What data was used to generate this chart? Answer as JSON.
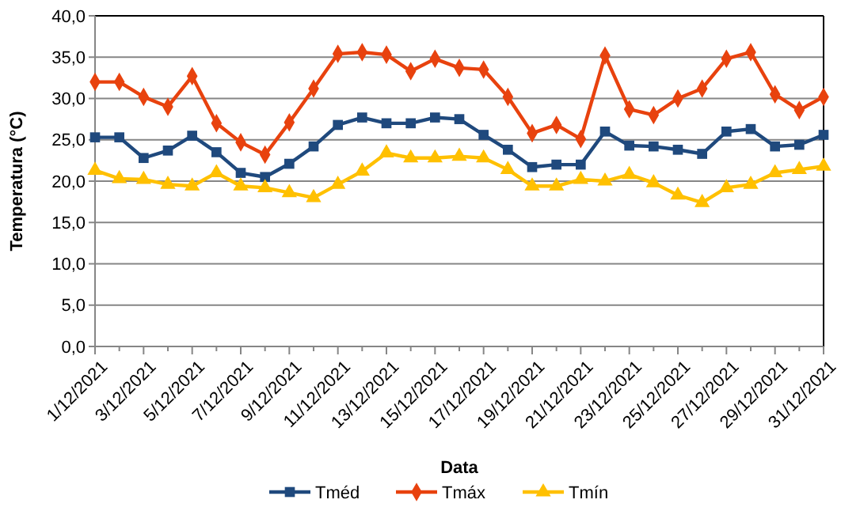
{
  "chart_data": {
    "type": "line",
    "xlabel": "Data",
    "ylabel": "Temperatura (°C)",
    "x": [
      "2021-12-01",
      "2021-12-02",
      "2021-12-03",
      "2021-12-04",
      "2021-12-05",
      "2021-12-06",
      "2021-12-07",
      "2021-12-08",
      "2021-12-09",
      "2021-12-10",
      "2021-12-11",
      "2021-12-12",
      "2021-12-13",
      "2021-12-14",
      "2021-12-15",
      "2021-12-16",
      "2021-12-17",
      "2021-12-18",
      "2021-12-19",
      "2021-12-20",
      "2021-12-21",
      "2021-12-22",
      "2021-12-23",
      "2021-12-24",
      "2021-12-25",
      "2021-12-26",
      "2021-12-27",
      "2021-12-28",
      "2021-12-29",
      "2021-12-30",
      "2021-12-31"
    ],
    "xlim": [
      "2021-12-01",
      "2021-12-31"
    ],
    "xticks": [
      {
        "value": "2021-12-01",
        "label": "1/12/2021"
      },
      {
        "value": "2021-12-02",
        "label": null
      },
      {
        "value": "2021-12-03",
        "label": "3/12/2021"
      },
      {
        "value": "2021-12-04",
        "label": null
      },
      {
        "value": "2021-12-05",
        "label": "5/12/2021"
      },
      {
        "value": "2021-12-06",
        "label": null
      },
      {
        "value": "2021-12-07",
        "label": "7/12/2021"
      },
      {
        "value": "2021-12-08",
        "label": null
      },
      {
        "value": "2021-12-09",
        "label": "9/12/2021"
      },
      {
        "value": "2021-12-10",
        "label": null
      },
      {
        "value": "2021-12-11",
        "label": "11/12/2021"
      },
      {
        "value": "2021-12-12",
        "label": null
      },
      {
        "value": "2021-12-13",
        "label": "13/12/2021"
      },
      {
        "value": "2021-12-14",
        "label": null
      },
      {
        "value": "2021-12-15",
        "label": "15/12/2021"
      },
      {
        "value": "2021-12-16",
        "label": null
      },
      {
        "value": "2021-12-17",
        "label": "17/12/2021"
      },
      {
        "value": "2021-12-18",
        "label": null
      },
      {
        "value": "2021-12-19",
        "label": "19/12/2021"
      },
      {
        "value": "2021-12-20",
        "label": null
      },
      {
        "value": "2021-12-21",
        "label": "21/12/2021"
      },
      {
        "value": "2021-12-22",
        "label": null
      },
      {
        "value": "2021-12-23",
        "label": "23/12/2021"
      },
      {
        "value": "2021-12-24",
        "label": null
      },
      {
        "value": "2021-12-25",
        "label": "25/12/2021"
      },
      {
        "value": "2021-12-26",
        "label": null
      },
      {
        "value": "2021-12-27",
        "label": "27/12/2021"
      },
      {
        "value": "2021-12-28",
        "label": null
      },
      {
        "value": "2021-12-29",
        "label": "29/12/2021"
      },
      {
        "value": "2021-12-30",
        "label": null
      },
      {
        "value": "2021-12-31",
        "label": "31/12/2021"
      }
    ],
    "series": [
      {
        "name": "Tméd",
        "color": "#1f497d",
        "marker": "square",
        "values": [
          25.3,
          25.3,
          22.8,
          23.7,
          25.5,
          23.5,
          21.0,
          20.5,
          22.1,
          24.2,
          26.8,
          27.7,
          27.0,
          27.0,
          27.7,
          27.5,
          25.6,
          23.8,
          21.7,
          22.0,
          22.0,
          26.0,
          24.3,
          24.2,
          23.8,
          23.3,
          26.0,
          26.3,
          24.2,
          24.4,
          25.6
        ]
      },
      {
        "name": "Tmáx",
        "color": "#e8420e",
        "marker": "diamond",
        "values": [
          32.0,
          32.0,
          30.2,
          29.0,
          32.7,
          27.0,
          24.7,
          23.2,
          27.1,
          31.2,
          35.4,
          35.6,
          35.3,
          33.3,
          34.8,
          33.7,
          33.5,
          30.2,
          25.8,
          26.8,
          25.1,
          35.2,
          28.7,
          28.0,
          30.0,
          31.2,
          34.8,
          35.6,
          30.5,
          28.6,
          30.2
        ]
      },
      {
        "name": "Tmín",
        "color": "#ffc000",
        "marker": "triangle",
        "values": [
          21.3,
          20.3,
          20.2,
          19.6,
          19.4,
          21.0,
          19.4,
          19.2,
          18.6,
          18.0,
          19.6,
          21.2,
          23.4,
          22.8,
          22.8,
          23.0,
          22.8,
          21.4,
          19.4,
          19.4,
          20.2,
          20.0,
          20.8,
          19.8,
          18.3,
          17.4,
          19.2,
          19.6,
          21.0,
          21.4,
          21.8
        ]
      }
    ],
    "ylim": [
      0,
      40
    ],
    "yticks": [
      {
        "value": 0,
        "label": "0,0"
      },
      {
        "value": 5,
        "label": "5,0"
      },
      {
        "value": 10,
        "label": "10,0"
      },
      {
        "value": 15,
        "label": "15,0"
      },
      {
        "value": 20,
        "label": "20,0"
      },
      {
        "value": 25,
        "label": "25,0"
      },
      {
        "value": 30,
        "label": "30,0"
      },
      {
        "value": 35,
        "label": "35,0"
      },
      {
        "value": 40,
        "label": "40,0"
      }
    ],
    "grid": "y",
    "legend": "bottom"
  }
}
